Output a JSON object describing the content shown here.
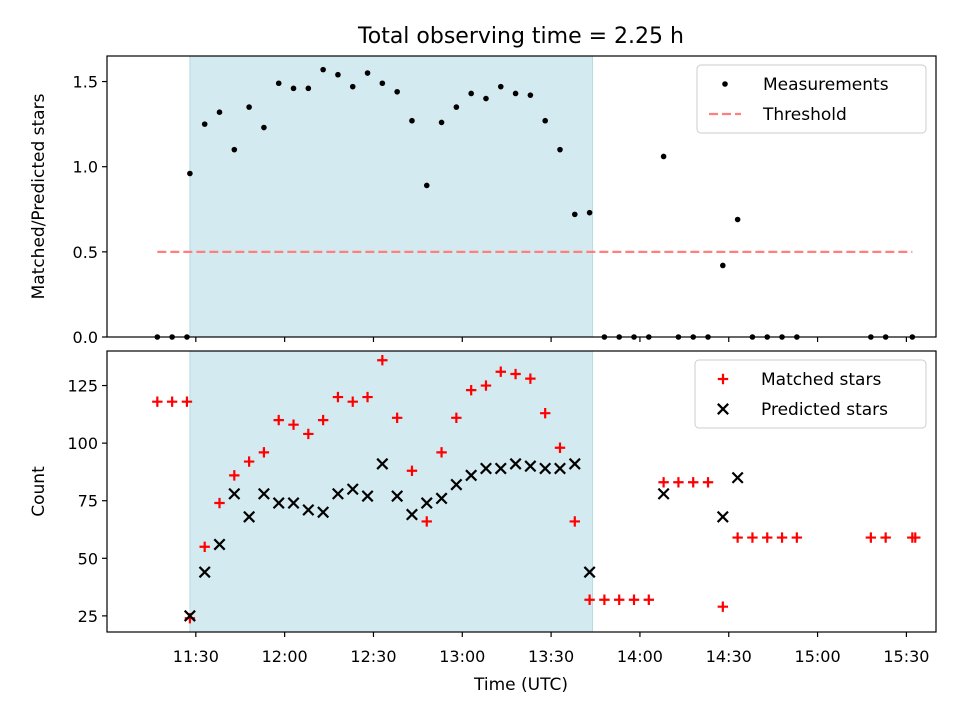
{
  "chart_data": {
    "type": "scatter",
    "title": "Total observing time = 2.25 h",
    "xlabel": "Time (UTC)",
    "x_unit": "time (UTC, HH:MM)",
    "xlim": [
      "11:00",
      "15:40"
    ],
    "xticks": [
      "11:30",
      "12:00",
      "12:30",
      "13:00",
      "13:30",
      "14:00",
      "14:30",
      "15:00",
      "15:30"
    ],
    "observing_window": {
      "start": "11:28",
      "end": "13:44",
      "color": "#d3eaf0"
    },
    "panels": [
      {
        "ylabel": "Matched/Predicted stars",
        "ylim": [
          0,
          1.65
        ],
        "yticks": [
          "0.0",
          "0.5",
          "1.0",
          "1.5"
        ],
        "legend_location": "upper right",
        "series": [
          {
            "name": "Measurements",
            "kind": "dot",
            "color": "#000000",
            "points": [
              [
                "11:17",
                0
              ],
              [
                "11:22",
                0
              ],
              [
                "11:27",
                0
              ],
              [
                "11:28",
                0.96
              ],
              [
                "11:33",
                1.25
              ],
              [
                "11:38",
                1.32
              ],
              [
                "11:43",
                1.1
              ],
              [
                "11:48",
                1.35
              ],
              [
                "11:53",
                1.23
              ],
              [
                "11:58",
                1.49
              ],
              [
                "12:03",
                1.46
              ],
              [
                "12:08",
                1.46
              ],
              [
                "12:13",
                1.57
              ],
              [
                "12:18",
                1.54
              ],
              [
                "12:23",
                1.47
              ],
              [
                "12:28",
                1.55
              ],
              [
                "12:33",
                1.49
              ],
              [
                "12:38",
                1.44
              ],
              [
                "12:43",
                1.27
              ],
              [
                "12:48",
                0.89
              ],
              [
                "12:53",
                1.26
              ],
              [
                "12:58",
                1.35
              ],
              [
                "13:03",
                1.43
              ],
              [
                "13:08",
                1.4
              ],
              [
                "13:13",
                1.47
              ],
              [
                "13:18",
                1.43
              ],
              [
                "13:23",
                1.42
              ],
              [
                "13:28",
                1.27
              ],
              [
                "13:33",
                1.1
              ],
              [
                "13:38",
                0.72
              ],
              [
                "13:43",
                0.73
              ],
              [
                "13:48",
                0
              ],
              [
                "13:53",
                0
              ],
              [
                "13:58",
                0
              ],
              [
                "14:03",
                0
              ],
              [
                "14:08",
                1.06
              ],
              [
                "14:13",
                0
              ],
              [
                "14:18",
                0
              ],
              [
                "14:23",
                0
              ],
              [
                "14:28",
                0.42
              ],
              [
                "14:33",
                0.69
              ],
              [
                "14:38",
                0
              ],
              [
                "14:43",
                0
              ],
              [
                "14:48",
                0
              ],
              [
                "14:53",
                0
              ],
              [
                "15:18",
                0
              ],
              [
                "15:23",
                0
              ],
              [
                "15:32",
                0
              ]
            ]
          },
          {
            "name": "Threshold",
            "kind": "dashed-line",
            "color": "#ff7f7f",
            "points": [
              [
                "11:17",
                0.5
              ],
              [
                "15:32",
                0.5
              ]
            ]
          }
        ]
      },
      {
        "ylabel": "Count",
        "ylim": [
          18,
          140
        ],
        "yticks": [
          "25",
          "50",
          "75",
          "100",
          "125"
        ],
        "legend_location": "upper right",
        "series": [
          {
            "name": "Matched stars",
            "kind": "plus",
            "color": "#ff0000",
            "points": [
              [
                "11:17",
                118
              ],
              [
                "11:22",
                118
              ],
              [
                "11:27",
                118
              ],
              [
                "11:28",
                24
              ],
              [
                "11:33",
                55
              ],
              [
                "11:38",
                74
              ],
              [
                "11:43",
                86
              ],
              [
                "11:48",
                92
              ],
              [
                "11:53",
                96
              ],
              [
                "11:58",
                110
              ],
              [
                "12:03",
                108
              ],
              [
                "12:08",
                104
              ],
              [
                "12:13",
                110
              ],
              [
                "12:18",
                120
              ],
              [
                "12:23",
                118
              ],
              [
                "12:28",
                120
              ],
              [
                "12:33",
                136
              ],
              [
                "12:38",
                111
              ],
              [
                "12:43",
                88
              ],
              [
                "12:48",
                66
              ],
              [
                "12:53",
                96
              ],
              [
                "12:58",
                111
              ],
              [
                "13:03",
                123
              ],
              [
                "13:08",
                125
              ],
              [
                "13:13",
                131
              ],
              [
                "13:18",
                130
              ],
              [
                "13:23",
                128
              ],
              [
                "13:28",
                113
              ],
              [
                "13:33",
                98
              ],
              [
                "13:38",
                66
              ],
              [
                "13:43",
                32
              ],
              [
                "13:48",
                32
              ],
              [
                "13:53",
                32
              ],
              [
                "13:58",
                32
              ],
              [
                "14:03",
                32
              ],
              [
                "14:08",
                83
              ],
              [
                "14:13",
                83
              ],
              [
                "14:18",
                83
              ],
              [
                "14:23",
                83
              ],
              [
                "14:28",
                29
              ],
              [
                "14:33",
                59
              ],
              [
                "14:38",
                59
              ],
              [
                "14:43",
                59
              ],
              [
                "14:48",
                59
              ],
              [
                "14:53",
                59
              ],
              [
                "15:18",
                59
              ],
              [
                "15:23",
                59
              ],
              [
                "15:32",
                59
              ],
              [
                "15:33",
                59
              ]
            ]
          },
          {
            "name": "Predicted stars",
            "kind": "x",
            "color": "#000000",
            "points": [
              [
                "11:28",
                25
              ],
              [
                "11:33",
                44
              ],
              [
                "11:38",
                56
              ],
              [
                "11:43",
                78
              ],
              [
                "11:48",
                68
              ],
              [
                "11:53",
                78
              ],
              [
                "11:58",
                74
              ],
              [
                "12:03",
                74
              ],
              [
                "12:08",
                71
              ],
              [
                "12:13",
                70
              ],
              [
                "12:18",
                78
              ],
              [
                "12:23",
                80
              ],
              [
                "12:28",
                77
              ],
              [
                "12:33",
                91
              ],
              [
                "12:38",
                77
              ],
              [
                "12:43",
                69
              ],
              [
                "12:48",
                74
              ],
              [
                "12:53",
                76
              ],
              [
                "12:58",
                82
              ],
              [
                "13:03",
                86
              ],
              [
                "13:08",
                89
              ],
              [
                "13:13",
                89
              ],
              [
                "13:18",
                91
              ],
              [
                "13:23",
                90
              ],
              [
                "13:28",
                89
              ],
              [
                "13:33",
                89
              ],
              [
                "13:38",
                91
              ],
              [
                "13:43",
                44
              ],
              [
                "14:08",
                78
              ],
              [
                "14:28",
                68
              ],
              [
                "14:33",
                85
              ]
            ]
          }
        ]
      }
    ]
  }
}
